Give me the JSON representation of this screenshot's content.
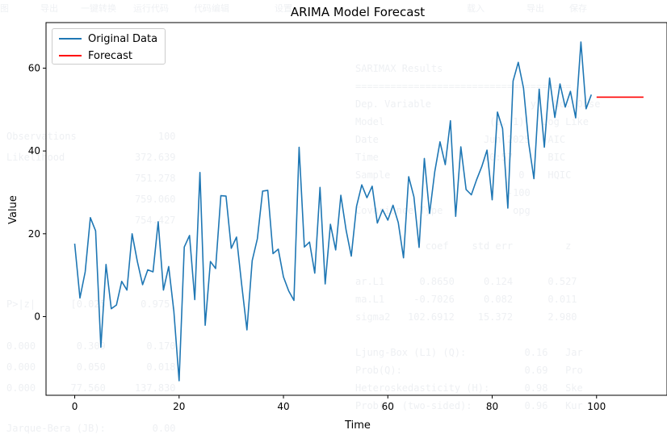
{
  "background_ghost": {
    "menu_items": [
      "图",
      "导出",
      "一键转换",
      "运行代码",
      "代码编辑",
      "设置",
      "载入",
      "导出",
      "保存"
    ],
    "summary_lines": [
      "SARIMAX Results",
      "=====================================",
      "Dep. Variable                 y   No. Obse",
      "Model                  (1, 1)   Log Like",
      "Date                  Jun 2025   AIC",
      "Time                  10:57      BIC",
      "Sample                      0    HQIC",
      "                          -100",
      "Covariance Type            opg",
      "            coef    std err         z",
      "ar.L1      0.8650     0.124      0.527",
      "ma.L1     -0.7026     0.082      0.011",
      "sigma2   102.6912    15.372      2.980",
      "Ljung-Box (L1) (Q):          0.16   Jar",
      "Prob(Q):                     0.69   Pro",
      "Heteroskedasticity (H):      0.98   Ske",
      "Prob(H) (two-sided):         0.96   Kur"
    ],
    "left_lines": [
      "Observations              100",
      "Likelihood            372.639",
      "                      751.278",
      "                      759.060",
      "                      754.427",
      "P>|z|      [0.025      0.975]",
      "0.000       0.309       0.170",
      "0.000       0.050       0.018",
      "0.000      77.560     137.830",
      "Jarque-Bera (JB):        0.00"
    ]
  },
  "chart_data": {
    "type": "line",
    "title": "ARIMA Model Forecast",
    "xlabel": "Time",
    "ylabel": "Value",
    "xlim": [
      -5.5,
      113.5
    ],
    "ylim": [
      -19,
      71
    ],
    "x_ticks": [
      0,
      20,
      40,
      60,
      80,
      100
    ],
    "y_ticks": [
      0,
      20,
      40,
      60
    ],
    "grid": false,
    "legend_position": "top-left",
    "series": [
      {
        "name": "Original Data",
        "color": "#1f77b4",
        "x_start": 0,
        "values": [
          17.6,
          4.5,
          10.8,
          23.9,
          20.7,
          -7.4,
          12.6,
          1.9,
          2.8,
          8.5,
          6.4,
          20.0,
          13.3,
          7.7,
          11.3,
          10.8,
          22.9,
          6.4,
          12.1,
          1.3,
          -15.5,
          16.8,
          19.6,
          4.1,
          34.8,
          -2.1,
          13.3,
          11.6,
          29.2,
          29.1,
          16.5,
          19.2,
          7.7,
          -3.2,
          13.5,
          18.8,
          30.3,
          30.5,
          15.2,
          16.3,
          9.6,
          6.2,
          3.9,
          40.9,
          16.8,
          18.0,
          10.5,
          31.2,
          7.9,
          22.3,
          16.1,
          29.3,
          20.9,
          14.6,
          26.6,
          31.8,
          28.7,
          31.5,
          22.6,
          25.8,
          23.3,
          26.9,
          22.7,
          14.2,
          33.8,
          28.9,
          16.7,
          38.2,
          24.9,
          35.0,
          42.2,
          36.7,
          47.3,
          24.2,
          41.0,
          30.7,
          29.4,
          33.0,
          36.2,
          40.2,
          28.2,
          49.4,
          45.4,
          26.2,
          56.9,
          61.4,
          55.2,
          41.8,
          33.3,
          54.9,
          40.9,
          57.6,
          48.1,
          56.2,
          50.6,
          54.4,
          48.0,
          66.3,
          50.2,
          53.6
        ]
      },
      {
        "name": "Forecast",
        "color": "#ff0000",
        "x_start": 100,
        "values": [
          53.0,
          53.0,
          53.0,
          53.0,
          53.0,
          53.0,
          53.0,
          53.0,
          53.0,
          53.0
        ]
      }
    ]
  }
}
